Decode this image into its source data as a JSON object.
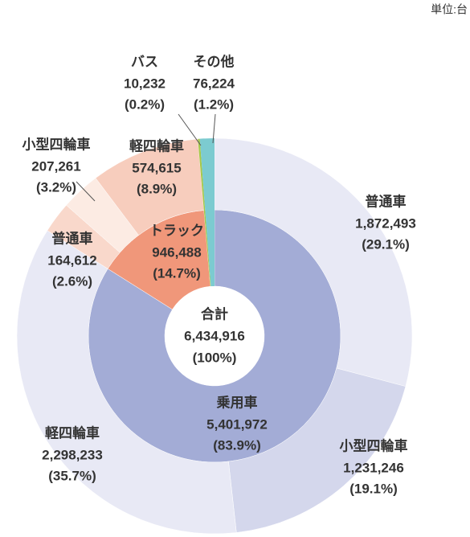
{
  "chart_data": {
    "type": "donut",
    "unit": "単位:台",
    "center": {
      "label": "合計",
      "value": 6434916,
      "value_label": "6,434,916",
      "percent_label": "(100%)"
    },
    "groups": [
      {
        "name": "乗用車",
        "color": "#a3acd6",
        "value": 5401972,
        "value_label": "5,401,972",
        "percent_label": "(83.9%)",
        "children": [
          {
            "name": "普通車",
            "color": "#e8e9f5",
            "value": 1872493,
            "value_label": "1,872,493",
            "percent_label": "(29.1%)"
          },
          {
            "name": "小型四輪車",
            "color": "#d4d7ec",
            "value": 1231246,
            "value_label": "1,231,246",
            "percent_label": "(19.1%)"
          },
          {
            "name": "軽四輪車",
            "color": "#e8e9f5",
            "value": 2298233,
            "value_label": "2,298,233",
            "percent_label": "(35.7%)"
          }
        ]
      },
      {
        "name": "トラック",
        "color": "#f0977a",
        "value": 946488,
        "value_label": "946,488",
        "percent_label": "(14.7%)",
        "children": [
          {
            "name": "普通車",
            "color": "#f9d8cb",
            "value": 164612,
            "value_label": "164,612",
            "percent_label": "(2.6%)"
          },
          {
            "name": "小型四輪車",
            "color": "#fcebe3",
            "value": 207261,
            "value_label": "207,261",
            "percent_label": "(3.2%)"
          },
          {
            "name": "軽四輪車",
            "color": "#f7cdbd",
            "value": 574615,
            "value_label": "574,615",
            "percent_label": "(8.9%)"
          }
        ]
      },
      {
        "name": "バス",
        "color": "#a6c84a",
        "value": 10232,
        "value_label": "10,232",
        "percent_label": "(0.2%)"
      },
      {
        "name": "その他",
        "color": "#7ccbd0",
        "value": 76224,
        "value_label": "76,224",
        "percent_label": "(1.2%)"
      }
    ]
  }
}
